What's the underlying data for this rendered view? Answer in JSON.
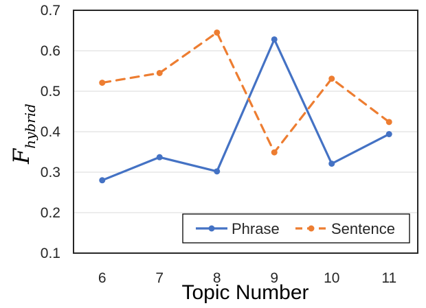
{
  "chart_data": {
    "type": "line",
    "xlabel": "Topic Number",
    "ylabel": {
      "main": "F",
      "subscript": "hybrid"
    },
    "categories": [
      "6",
      "7",
      "8",
      "9",
      "10",
      "11"
    ],
    "ylim": [
      0.1,
      0.7
    ],
    "yticks": [
      "0.1",
      "0.2",
      "0.3",
      "0.4",
      "0.5",
      "0.6",
      "0.7"
    ],
    "grid": true,
    "legend_position": "bottom-right",
    "series": [
      {
        "name": "Phrase",
        "values": [
          0.28,
          0.337,
          0.302,
          0.628,
          0.321,
          0.394
        ],
        "color": "#4472C4",
        "dash": "solid"
      },
      {
        "name": "Sentence",
        "values": [
          0.521,
          0.545,
          0.645,
          0.349,
          0.531,
          0.424
        ],
        "color": "#ED7D31",
        "dash": "dashed"
      }
    ]
  }
}
